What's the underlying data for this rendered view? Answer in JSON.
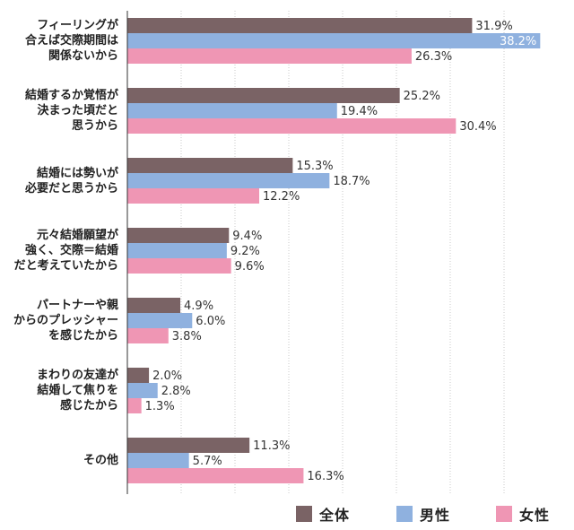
{
  "chart_data": {
    "type": "bar",
    "orientation": "horizontal",
    "categories": [
      [
        "フィーリングが",
        "合えば交際期間は",
        "関係ないから"
      ],
      [
        "結婚するか覚悟が",
        "決まった頃だと",
        "思うから"
      ],
      [
        "結婚には勢いが",
        "必要だと思うから"
      ],
      [
        "元々結婚願望が",
        "強く、交際＝結婚",
        "だと考えていたから"
      ],
      [
        "パートナーや親",
        "からのプレッシャー",
        "を感じたから"
      ],
      [
        "まわりの友達が",
        "結婚して焦りを",
        "感じたから"
      ],
      [
        "その他"
      ]
    ],
    "series": [
      {
        "name": "全体",
        "color": "#7a6365",
        "values": [
          31.9,
          25.2,
          15.3,
          9.4,
          4.9,
          2.0,
          11.3
        ]
      },
      {
        "name": "男性",
        "color": "#8fb1df",
        "values": [
          38.2,
          19.4,
          18.7,
          9.2,
          6.0,
          2.8,
          5.7
        ]
      },
      {
        "name": "女性",
        "color": "#ef96b4",
        "values": [
          26.3,
          30.4,
          12.2,
          9.6,
          3.8,
          1.3,
          16.3
        ]
      }
    ],
    "value_suffix": "%",
    "xlim": [
      0,
      40
    ],
    "grid": "vertical dotted lines",
    "legend_position": "bottom-right"
  }
}
